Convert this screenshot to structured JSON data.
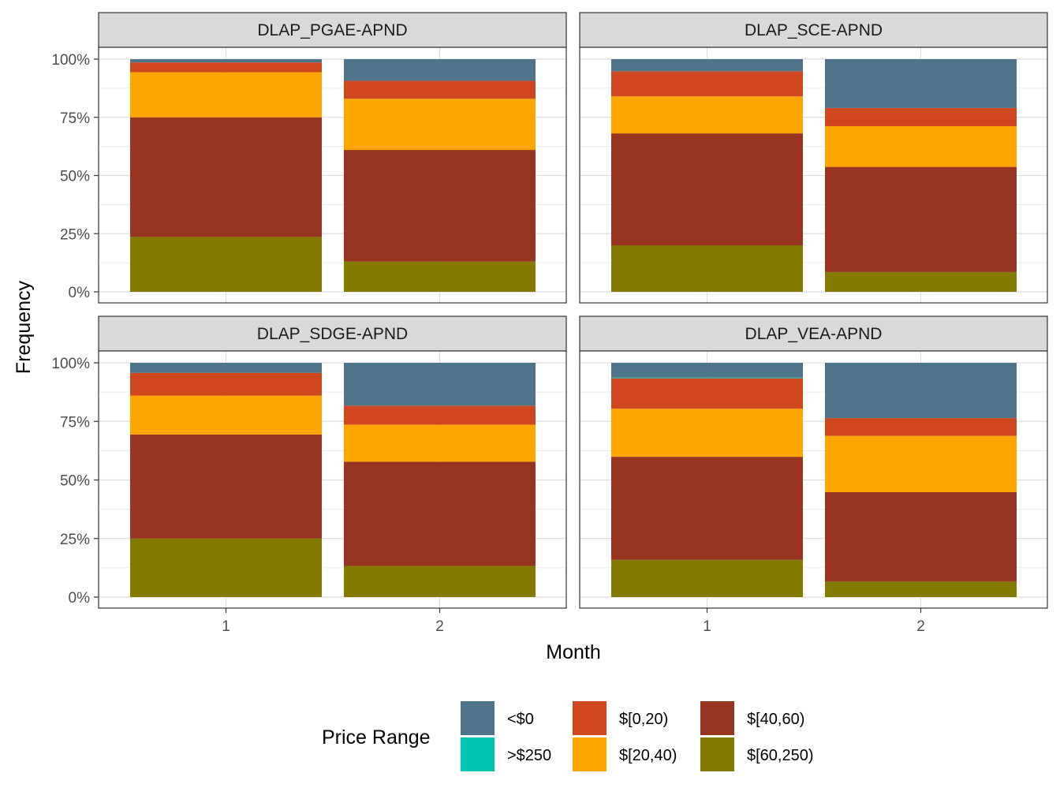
{
  "chart_data": {
    "type": "bar",
    "stacked": true,
    "percent": true,
    "xlabel": "Month",
    "ylabel": "Frequency",
    "ylim": [
      0,
      1
    ],
    "y_ticks": [
      "0%",
      "25%",
      "50%",
      "75%",
      "100%"
    ],
    "y_tick_values": [
      0,
      0.25,
      0.5,
      0.75,
      1.0
    ],
    "categories": [
      "1",
      "2"
    ],
    "grid": true,
    "legend": {
      "title": "Price Range",
      "position": "bottom",
      "entries": [
        {
          "label": "<$0",
          "color": "#4E748B"
        },
        {
          "label": ">$250",
          "color": "#00C4B4"
        },
        {
          "label": "$[0,20)",
          "color": "#D0461F"
        },
        {
          "label": "$[20,40)",
          "color": "#FFA500"
        },
        {
          "label": "$[40,60)",
          "color": "#973521"
        },
        {
          "label": "$[60,250)",
          "color": "#847A00"
        }
      ]
    },
    "stack_order_bottom_to_top": [
      "$[60,250)",
      "$[40,60)",
      "$[20,40)",
      "$[0,20)",
      ">$250",
      "<$0"
    ],
    "panels": [
      {
        "title": "DLAP_PGAE-APND",
        "series": [
          {
            "name": "<$0",
            "values": [
              0.014,
              0.093
            ]
          },
          {
            "name": ">$250",
            "values": [
              0.0,
              0.0
            ]
          },
          {
            "name": "$[0,20)",
            "values": [
              0.042,
              0.077
            ]
          },
          {
            "name": "$[20,40)",
            "values": [
              0.194,
              0.22
            ]
          },
          {
            "name": "$[40,60)",
            "values": [
              0.514,
              0.48
            ]
          },
          {
            "name": "$[60,250)",
            "values": [
              0.236,
              0.13
            ]
          }
        ]
      },
      {
        "title": "DLAP_SCE-APND",
        "series": [
          {
            "name": "<$0",
            "values": [
              0.052,
              0.21
            ]
          },
          {
            "name": ">$250",
            "values": [
              0.0,
              0.0
            ]
          },
          {
            "name": "$[0,20)",
            "values": [
              0.108,
              0.078
            ]
          },
          {
            "name": "$[20,40)",
            "values": [
              0.159,
              0.175
            ]
          },
          {
            "name": "$[40,60)",
            "values": [
              0.481,
              0.452
            ]
          },
          {
            "name": "$[60,250)",
            "values": [
              0.2,
              0.085
            ]
          }
        ]
      },
      {
        "title": "DLAP_SDGE-APND",
        "series": [
          {
            "name": "<$0",
            "values": [
              0.043,
              0.183
            ]
          },
          {
            "name": ">$250",
            "values": [
              0.0,
              0.0
            ]
          },
          {
            "name": "$[0,20)",
            "values": [
              0.097,
              0.081
            ]
          },
          {
            "name": "$[20,40)",
            "values": [
              0.166,
              0.158
            ]
          },
          {
            "name": "$[40,60)",
            "values": [
              0.444,
              0.445
            ]
          },
          {
            "name": "$[60,250)",
            "values": [
              0.25,
              0.133
            ]
          }
        ]
      },
      {
        "title": "DLAP_VEA-APND",
        "series": [
          {
            "name": "<$0",
            "values": [
              0.063,
              0.236
            ]
          },
          {
            "name": ">$250",
            "values": [
              0.003,
              0.0
            ]
          },
          {
            "name": "$[0,20)",
            "values": [
              0.13,
              0.076
            ]
          },
          {
            "name": "$[20,40)",
            "values": [
              0.205,
              0.24
            ]
          },
          {
            "name": "$[40,60)",
            "values": [
              0.44,
              0.382
            ]
          },
          {
            "name": "$[60,250)",
            "values": [
              0.159,
              0.066
            ]
          }
        ]
      }
    ]
  }
}
